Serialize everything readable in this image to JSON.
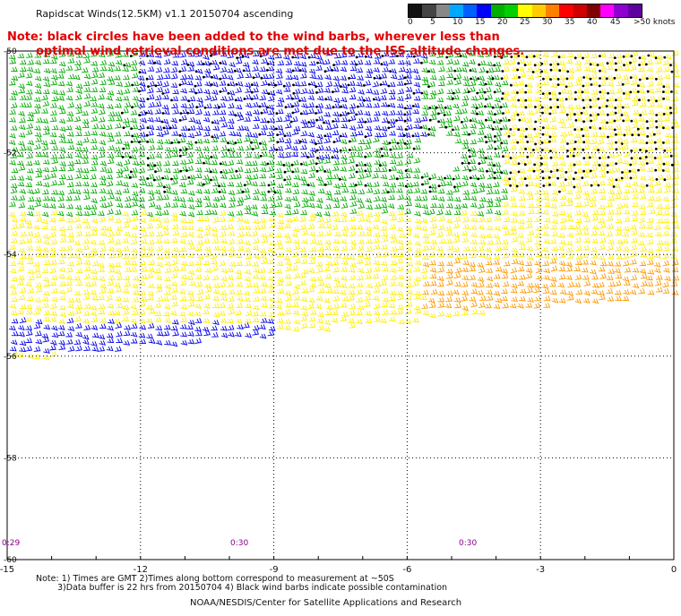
{
  "title": "Rapidscat Winds(12.5KM) v1.1 20150704 ascending",
  "note": {
    "line1": "Note: black circles have been added to the wind barbs, wherever less than",
    "line2": "optimal wind retrieval conditions are met due to the ISS altitude changes."
  },
  "legend": {
    "labels": [
      "0",
      "5",
      "10",
      "15",
      "20",
      "25",
      "30",
      "35",
      "40",
      "45",
      ">50 knots"
    ],
    "colors": [
      "#111111",
      "#444444",
      "#888888",
      "#00a8ff",
      "#0060ff",
      "#0000ff",
      "#00b000",
      "#00d000",
      "#ffff00",
      "#ffcc00",
      "#ff8000",
      "#ff0000",
      "#cc0000",
      "#800000",
      "#ff00ff",
      "#9000d0",
      "#6000a0"
    ]
  },
  "axes": {
    "x_ticks": [
      "-15",
      "-12",
      "-9",
      "-6",
      "-3",
      "0"
    ],
    "y_ticks": [
      "-50",
      "-52",
      "-54",
      "-56",
      "-58",
      "-60"
    ]
  },
  "time_labels": [
    "0:29",
    "0:30",
    "0:30"
  ],
  "footer": {
    "line1": "Note: 1) Times are GMT 2)Times along bottom correspond to measurement at ~50S",
    "line2": "3)Data buffer is 22 hrs from 20150704 4) Black wind barbs indicate possible contamination",
    "credit": "NOAA/NESDIS/Center for Satellite Applications and Research"
  },
  "map": {
    "lon_range": [
      -15,
      0
    ],
    "lat_range": [
      -60,
      -50
    ],
    "grid": true,
    "barb_colors": {
      "blue": "#0000ee",
      "green": "#00aa00",
      "yellow": "#ffee00",
      "orange": "#ff9900",
      "black": "#000000"
    }
  }
}
